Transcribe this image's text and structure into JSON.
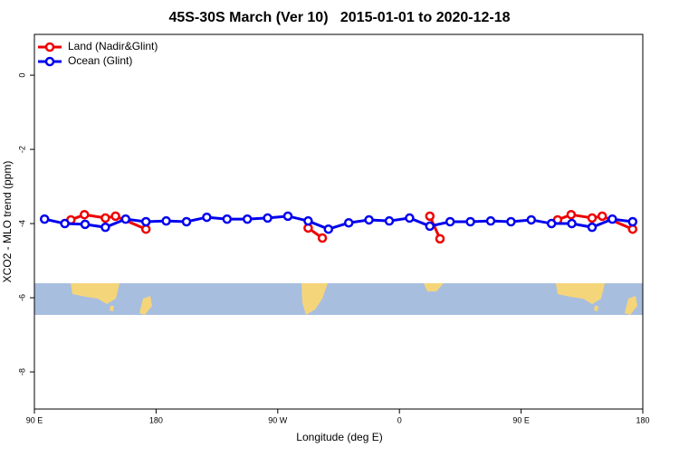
{
  "chart_data": {
    "type": "line",
    "title": "45S-30S March (Ver 10)   2015-01-01 to 2020-12-18",
    "x_label": "Longitude (deg E)",
    "y_label": "XCO2 - MLO trend (ppm)",
    "xlim": [
      90,
      540
    ],
    "xticks": [
      {
        "value": 90,
        "label": "90 E"
      },
      {
        "value": 180,
        "label": "180"
      },
      {
        "value": 270,
        "label": "90 W"
      },
      {
        "value": 360,
        "label": "0"
      },
      {
        "value": 450,
        "label": "90 E"
      },
      {
        "value": 540,
        "label": "180"
      }
    ],
    "ylim": [
      -9,
      1.1
    ],
    "yticks": [
      0,
      -2,
      -4,
      -6,
      -8
    ],
    "legend": "top-left",
    "series": [
      {
        "name": "Land (Nadir&Glint)",
        "color": "#ee0000",
        "x": [
          117,
          127,
          142.5,
          150,
          172.5,
          232.5,
          292.5,
          303,
          345,
          382.5,
          390,
          435,
          477,
          487,
          502.5,
          510,
          532.5
        ],
        "values": [
          -3.9,
          -3.76,
          -3.85,
          -3.8,
          -4.15,
          null,
          -4.12,
          -4.39,
          null,
          -3.8,
          -4.41,
          null,
          -3.9,
          -3.76,
          -3.85,
          -3.8,
          -4.15
        ]
      },
      {
        "name": "Ocean (Glint)",
        "color": "#0000ee",
        "x": [
          97.5,
          112.5,
          127.5,
          142.5,
          157.5,
          172.5,
          187.5,
          202.5,
          217.5,
          232.5,
          247.5,
          262.5,
          277.5,
          292.5,
          307.5,
          322.5,
          337.5,
          352.5,
          367.5,
          382.5,
          397.5,
          412.5,
          427.5,
          442.5,
          457.5,
          472.5,
          487.5,
          502.5,
          517.5,
          532.5
        ],
        "values": [
          -3.88,
          -4.0,
          -4.02,
          -4.1,
          -3.88,
          -3.95,
          -3.93,
          -3.95,
          -3.83,
          -3.88,
          -3.88,
          -3.85,
          -3.8,
          -3.93,
          -4.15,
          -3.98,
          -3.9,
          -3.93,
          -3.85,
          -4.07,
          -3.95,
          -3.95,
          -3.93,
          -3.95,
          -3.9,
          -4.0,
          -4.0,
          -4.1,
          -3.88,
          -3.95
        ]
      }
    ]
  }
}
